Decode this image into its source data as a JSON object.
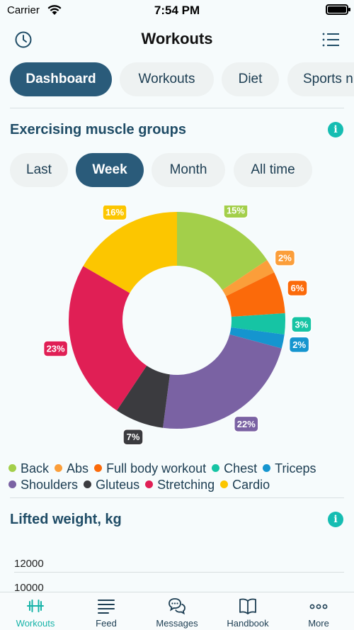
{
  "status_bar": {
    "carrier": "Carrier",
    "time": "7:54 PM"
  },
  "header": {
    "title": "Workouts"
  },
  "tabs": [
    {
      "label": "Dashboard",
      "active": true
    },
    {
      "label": "Workouts",
      "active": false
    },
    {
      "label": "Diet",
      "active": false
    },
    {
      "label": "Sports n",
      "active": false
    }
  ],
  "muscle_section": {
    "title": "Exercising muscle groups"
  },
  "periods": [
    {
      "label": "Last",
      "active": false
    },
    {
      "label": "Week",
      "active": true
    },
    {
      "label": "Month",
      "active": false
    },
    {
      "label": "All time",
      "active": false
    }
  ],
  "chart_data": {
    "type": "pie",
    "donut": true,
    "start_angle_deg": 0,
    "slices": [
      {
        "name": "Back",
        "value": 15,
        "label": "15%",
        "color": "#a3cf4a"
      },
      {
        "name": "Abs",
        "value": 2,
        "label": "2%",
        "color": "#fb9e3a"
      },
      {
        "name": "Full body workout",
        "value": 6,
        "label": "6%",
        "color": "#fb6a0a"
      },
      {
        "name": "Chest",
        "value": 3,
        "label": "3%",
        "color": "#16c4a4"
      },
      {
        "name": "Triceps",
        "value": 2,
        "label": "2%",
        "color": "#1595cf"
      },
      {
        "name": "Shoulders",
        "value": 22,
        "label": "22%",
        "color": "#7a62a3"
      },
      {
        "name": "Gluteus",
        "value": 7,
        "label": "7%",
        "color": "#3b3b3f"
      },
      {
        "name": "Stretching",
        "value": 23,
        "label": "23%",
        "color": "#e01f55"
      },
      {
        "name": "Cardio",
        "value": 16,
        "label": "16%",
        "color": "#fcc600"
      }
    ],
    "legend_position": "bottom"
  },
  "lifted_section": {
    "title": "Lifted weight, kg",
    "y_ticks": [
      "12000",
      "10000"
    ]
  },
  "bottom_nav": [
    {
      "label": "Workouts",
      "icon": "dumbbell-icon",
      "active": true
    },
    {
      "label": "Feed",
      "icon": "feed-icon",
      "active": false
    },
    {
      "label": "Messages",
      "icon": "messages-icon",
      "active": false
    },
    {
      "label": "Handbook",
      "icon": "book-icon",
      "active": false
    },
    {
      "label": "More",
      "icon": "more-icon",
      "active": false
    }
  ],
  "colors": {
    "accent": "#16b3a8",
    "primary": "#2a5b7a",
    "title": "#1f4c66"
  }
}
